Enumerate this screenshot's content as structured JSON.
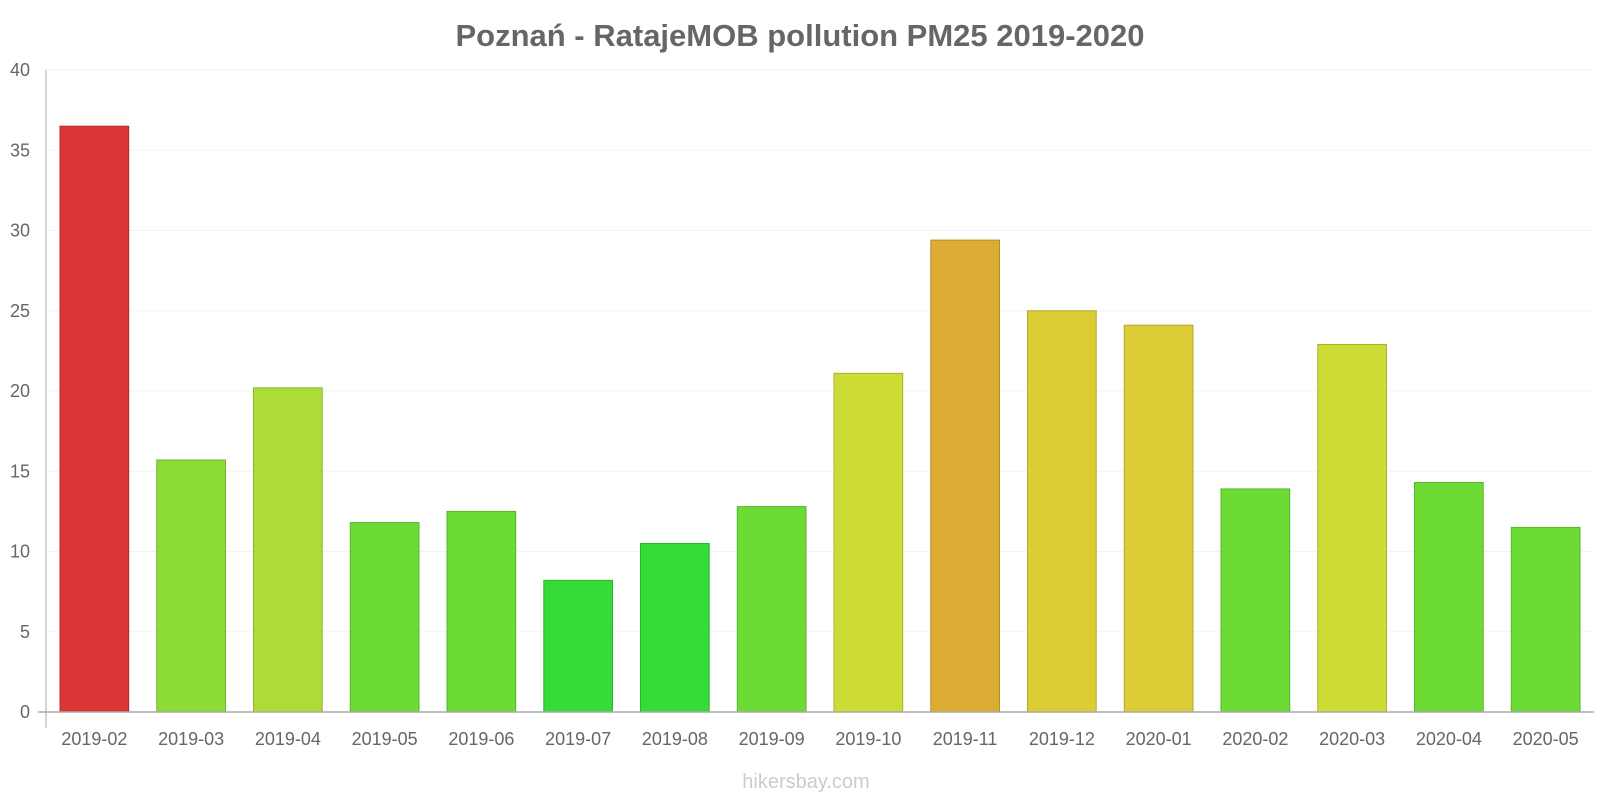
{
  "chart_data": {
    "type": "bar",
    "title": "Poznań - RatajeMOB pollution PM25 2019-2020",
    "xlabel": "",
    "ylabel": "",
    "ylim": [
      0,
      40
    ],
    "yticks": [
      0,
      5,
      10,
      15,
      20,
      25,
      30,
      35,
      40
    ],
    "grid": true,
    "categories": [
      "2019-02",
      "2019-03",
      "2019-04",
      "2019-05",
      "2019-06",
      "2019-07",
      "2019-08",
      "2019-09",
      "2019-10",
      "2019-11",
      "2019-12",
      "2020-01",
      "2020-02",
      "2020-03",
      "2020-04",
      "2020-05"
    ],
    "values": [
      36.5,
      15.7,
      20.2,
      11.8,
      12.5,
      8.2,
      10.5,
      12.8,
      21.1,
      29.4,
      25.0,
      24.1,
      13.9,
      22.9,
      14.3,
      11.5
    ],
    "colors": [
      "#dc3535",
      "#8cdc35",
      "#acdc35",
      "#6cdc35",
      "#6cdc35",
      "#35dc35",
      "#35dc35",
      "#6cdc35",
      "#ccdc35",
      "#dcac35",
      "#dccc35",
      "#dccc35",
      "#6cdc35",
      "#ccdc35",
      "#6cdc35",
      "#6cdc35"
    ]
  },
  "footer": "hikersbay.com"
}
